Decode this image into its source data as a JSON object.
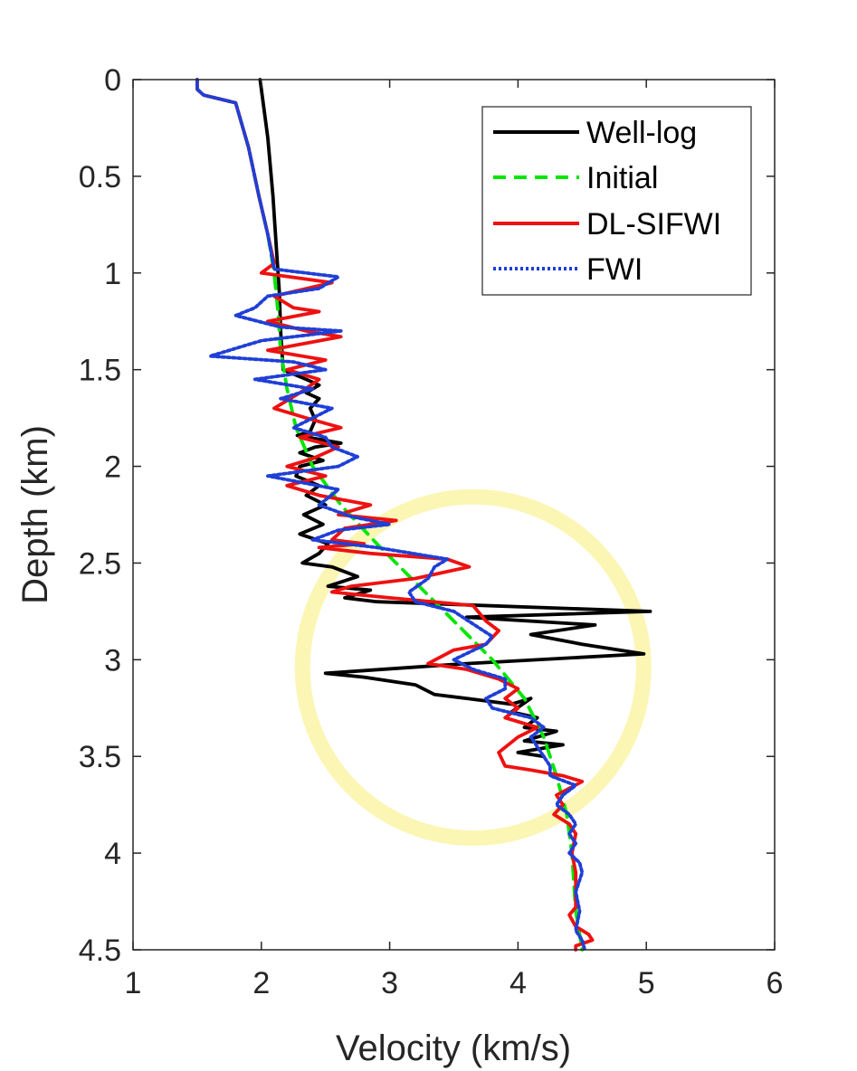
{
  "chart_data": {
    "type": "line",
    "title": "",
    "xlabel": "Velocity (km/s)",
    "ylabel": "Depth (km)",
    "xlim": [
      1,
      6
    ],
    "ylim": [
      0,
      4.5
    ],
    "y_reversed": true,
    "xticks": [
      "1",
      "2",
      "3",
      "4",
      "5",
      "6"
    ],
    "yticks": [
      "0",
      "0.5",
      "1",
      "1.5",
      "2",
      "2.5",
      "3",
      "3.5",
      "4",
      "4.5"
    ],
    "legend_position": "top-right",
    "highlight_circle": {
      "center_velocity": 3.65,
      "center_depth": 3.04,
      "radius_velocity": 1.33,
      "color": "#fbf6b4"
    },
    "series": [
      {
        "name": "Well-log",
        "color": "#000000",
        "style": "solid",
        "points": [
          [
            1.99,
            0.0
          ],
          [
            2.05,
            0.3
          ],
          [
            2.09,
            0.6
          ],
          [
            2.12,
            0.9
          ],
          [
            2.14,
            1.1
          ],
          [
            2.15,
            1.3
          ],
          [
            2.17,
            1.5
          ],
          [
            2.35,
            1.55
          ],
          [
            2.45,
            1.58
          ],
          [
            2.35,
            1.62
          ],
          [
            2.45,
            1.65
          ],
          [
            2.38,
            1.7
          ],
          [
            2.42,
            1.76
          ],
          [
            2.38,
            1.82
          ],
          [
            2.28,
            1.84
          ],
          [
            2.62,
            1.88
          ],
          [
            2.42,
            1.9
          ],
          [
            2.3,
            1.93
          ],
          [
            2.48,
            1.97
          ],
          [
            2.3,
            2.0
          ],
          [
            2.27,
            2.05
          ],
          [
            2.45,
            2.1
          ],
          [
            2.35,
            2.15
          ],
          [
            2.5,
            2.2
          ],
          [
            2.33,
            2.25
          ],
          [
            2.48,
            2.3
          ],
          [
            2.3,
            2.35
          ],
          [
            2.52,
            2.4
          ],
          [
            2.45,
            2.45
          ],
          [
            2.32,
            2.5
          ],
          [
            2.55,
            2.52
          ],
          [
            2.75,
            2.57
          ],
          [
            2.52,
            2.62
          ],
          [
            2.85,
            2.64
          ],
          [
            2.65,
            2.68
          ],
          [
            2.9,
            2.7
          ],
          [
            5.03,
            2.75
          ],
          [
            3.6,
            2.78
          ],
          [
            4.6,
            2.82
          ],
          [
            4.1,
            2.87
          ],
          [
            4.5,
            2.92
          ],
          [
            4.98,
            2.97
          ],
          [
            3.6,
            3.02
          ],
          [
            2.5,
            3.07
          ],
          [
            2.8,
            3.09
          ],
          [
            3.2,
            3.13
          ],
          [
            3.35,
            3.18
          ],
          [
            3.6,
            3.2
          ],
          [
            3.95,
            3.23
          ],
          [
            4.1,
            3.2
          ],
          [
            3.95,
            3.27
          ],
          [
            4.15,
            3.3
          ],
          [
            4.05,
            3.35
          ],
          [
            4.3,
            3.37
          ],
          [
            4.05,
            3.42
          ],
          [
            4.35,
            3.44
          ],
          [
            4.0,
            3.48
          ],
          [
            4.2,
            3.5
          ]
        ]
      },
      {
        "name": "Initial",
        "color": "#00e600",
        "style": "dashed",
        "points": [
          [
            1.5,
            0.0
          ],
          [
            1.5,
            0.05
          ],
          [
            1.55,
            0.08
          ],
          [
            1.8,
            0.12
          ],
          [
            1.9,
            0.35
          ],
          [
            1.98,
            0.6
          ],
          [
            2.05,
            0.8
          ],
          [
            2.1,
            1.0
          ],
          [
            2.13,
            1.2
          ],
          [
            2.15,
            1.4
          ],
          [
            2.2,
            1.6
          ],
          [
            2.27,
            1.8
          ],
          [
            2.4,
            2.0
          ],
          [
            2.62,
            2.2
          ],
          [
            2.9,
            2.4
          ],
          [
            3.2,
            2.6
          ],
          [
            3.5,
            2.8
          ],
          [
            3.8,
            3.0
          ],
          [
            4.05,
            3.2
          ],
          [
            4.2,
            3.4
          ],
          [
            4.3,
            3.6
          ],
          [
            4.38,
            3.8
          ],
          [
            4.42,
            4.0
          ],
          [
            4.45,
            4.3
          ],
          [
            4.5,
            4.5
          ]
        ]
      },
      {
        "name": "DL-SIFWI",
        "color": "#ee1111",
        "style": "solid",
        "points": [
          [
            1.5,
            0.0
          ],
          [
            1.5,
            0.05
          ],
          [
            1.55,
            0.08
          ],
          [
            1.8,
            0.12
          ],
          [
            1.9,
            0.35
          ],
          [
            1.98,
            0.6
          ],
          [
            2.05,
            0.8
          ],
          [
            2.1,
            0.95
          ],
          [
            2.0,
            1.0
          ],
          [
            2.55,
            1.05
          ],
          [
            2.1,
            1.12
          ],
          [
            2.25,
            1.18
          ],
          [
            2.45,
            1.2
          ],
          [
            2.05,
            1.25
          ],
          [
            2.35,
            1.3
          ],
          [
            2.62,
            1.33
          ],
          [
            2.05,
            1.4
          ],
          [
            2.5,
            1.45
          ],
          [
            2.2,
            1.5
          ],
          [
            2.45,
            1.55
          ],
          [
            2.3,
            1.62
          ],
          [
            2.1,
            1.7
          ],
          [
            2.35,
            1.75
          ],
          [
            2.62,
            1.8
          ],
          [
            2.3,
            1.85
          ],
          [
            2.6,
            1.9
          ],
          [
            2.4,
            1.96
          ],
          [
            2.2,
            2.0
          ],
          [
            2.5,
            2.05
          ],
          [
            2.2,
            2.1
          ],
          [
            2.45,
            2.15
          ],
          [
            2.85,
            2.2
          ],
          [
            2.6,
            2.25
          ],
          [
            3.05,
            2.28
          ],
          [
            2.65,
            2.32
          ],
          [
            2.55,
            2.38
          ],
          [
            2.8,
            2.4
          ],
          [
            2.45,
            2.42
          ],
          [
            2.85,
            2.45
          ],
          [
            3.45,
            2.48
          ],
          [
            3.62,
            2.52
          ],
          [
            3.2,
            2.58
          ],
          [
            2.7,
            2.62
          ],
          [
            2.55,
            2.65
          ],
          [
            3.0,
            2.68
          ],
          [
            3.65,
            2.72
          ],
          [
            3.75,
            2.8
          ],
          [
            3.85,
            2.85
          ],
          [
            3.75,
            2.92
          ],
          [
            3.5,
            2.95
          ],
          [
            3.3,
            3.02
          ],
          [
            3.6,
            3.05
          ],
          [
            3.75,
            3.08
          ],
          [
            3.85,
            3.1
          ],
          [
            4.0,
            3.15
          ],
          [
            3.9,
            3.2
          ],
          [
            4.0,
            3.25
          ],
          [
            3.9,
            3.3
          ],
          [
            4.15,
            3.35
          ],
          [
            4.0,
            3.4
          ],
          [
            3.85,
            3.48
          ],
          [
            3.9,
            3.55
          ],
          [
            4.1,
            3.57
          ],
          [
            4.35,
            3.6
          ],
          [
            4.5,
            3.63
          ],
          [
            4.3,
            3.7
          ],
          [
            4.35,
            3.75
          ],
          [
            4.28,
            3.8
          ],
          [
            4.4,
            3.85
          ],
          [
            4.45,
            3.9
          ],
          [
            4.42,
            4.0
          ],
          [
            4.45,
            4.1
          ],
          [
            4.45,
            4.2
          ],
          [
            4.45,
            4.28
          ],
          [
            4.4,
            4.32
          ],
          [
            4.45,
            4.38
          ],
          [
            4.55,
            4.42
          ],
          [
            4.58,
            4.45
          ],
          [
            4.45,
            4.48
          ],
          [
            4.45,
            4.5
          ]
        ]
      },
      {
        "name": "FWI",
        "color": "#1f3fd6",
        "style": "dotted",
        "points": [
          [
            1.5,
            0.0
          ],
          [
            1.5,
            0.05
          ],
          [
            1.55,
            0.08
          ],
          [
            1.8,
            0.12
          ],
          [
            1.9,
            0.35
          ],
          [
            1.98,
            0.6
          ],
          [
            2.05,
            0.8
          ],
          [
            2.1,
            0.98
          ],
          [
            2.6,
            1.02
          ],
          [
            2.45,
            1.08
          ],
          [
            2.05,
            1.12
          ],
          [
            1.95,
            1.18
          ],
          [
            1.8,
            1.22
          ],
          [
            2.15,
            1.28
          ],
          [
            2.62,
            1.3
          ],
          [
            2.0,
            1.35
          ],
          [
            1.6,
            1.43
          ],
          [
            2.25,
            1.46
          ],
          [
            2.5,
            1.5
          ],
          [
            1.95,
            1.55
          ],
          [
            2.4,
            1.6
          ],
          [
            2.15,
            1.65
          ],
          [
            2.55,
            1.7
          ],
          [
            2.25,
            1.8
          ],
          [
            2.5,
            1.85
          ],
          [
            2.55,
            1.9
          ],
          [
            2.75,
            1.95
          ],
          [
            2.6,
            2.0
          ],
          [
            2.05,
            2.05
          ],
          [
            2.6,
            2.12
          ],
          [
            2.45,
            2.2
          ],
          [
            2.7,
            2.26
          ],
          [
            3.0,
            2.3
          ],
          [
            2.6,
            2.33
          ],
          [
            2.4,
            2.38
          ],
          [
            2.9,
            2.42
          ],
          [
            3.45,
            2.48
          ],
          [
            3.35,
            2.52
          ],
          [
            3.3,
            2.58
          ],
          [
            3.15,
            2.65
          ],
          [
            3.2,
            2.7
          ],
          [
            3.5,
            2.75
          ],
          [
            3.8,
            2.88
          ],
          [
            3.75,
            2.92
          ],
          [
            3.5,
            3.0
          ],
          [
            3.65,
            3.05
          ],
          [
            3.9,
            3.1
          ],
          [
            3.9,
            3.15
          ],
          [
            3.75,
            3.2
          ],
          [
            3.8,
            3.25
          ],
          [
            4.1,
            3.3
          ],
          [
            4.2,
            3.35
          ],
          [
            4.1,
            3.4
          ],
          [
            4.15,
            3.45
          ],
          [
            4.2,
            3.5
          ],
          [
            4.25,
            3.55
          ],
          [
            4.25,
            3.6
          ],
          [
            4.45,
            3.65
          ],
          [
            4.35,
            3.7
          ],
          [
            4.3,
            3.75
          ],
          [
            4.4,
            3.8
          ],
          [
            4.45,
            3.85
          ],
          [
            4.4,
            3.9
          ],
          [
            4.45,
            3.95
          ],
          [
            4.4,
            4.0
          ],
          [
            4.48,
            4.05
          ],
          [
            4.5,
            4.1
          ],
          [
            4.45,
            4.2
          ],
          [
            4.48,
            4.3
          ],
          [
            4.45,
            4.4
          ],
          [
            4.5,
            4.45
          ],
          [
            4.52,
            4.5
          ]
        ]
      }
    ]
  }
}
